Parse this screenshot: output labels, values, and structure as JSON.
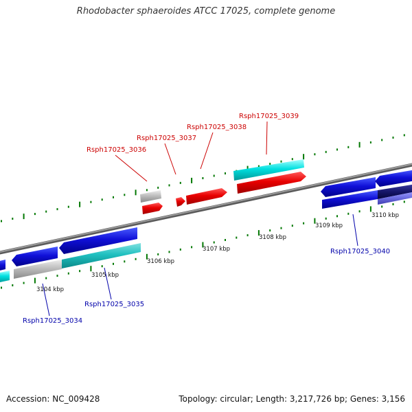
{
  "title": "Rhodobacter sphaeroides ATCC 17025, complete genome",
  "footer": {
    "accession": "Accession: NC_009428",
    "topology": "Topology: circular; Length: 3,217,726 bp; Genes: 3,156"
  },
  "colors": {
    "forward_gene": "#e80000",
    "reverse_gene": "#1010d8",
    "cyan_feature": "#00d8d8",
    "grey_feature": "#b0b0b0",
    "tick": "#007700",
    "forward_label": "#cc0000",
    "reverse_label": "#0000aa",
    "backbone": "#808080"
  },
  "scale_labels": [
    "3104 kbp",
    "3105 kbp",
    "3106 kbp",
    "3107 kbp",
    "3108 kbp",
    "3109 kbp",
    "3110 kbp"
  ],
  "genes": {
    "forward": [
      "Rsph17025_3036",
      "Rsph17025_3037",
      "Rsph17025_3038",
      "Rsph17025_3039"
    ],
    "reverse": [
      "Rsph17025_3034",
      "Rsph17025_3035",
      "Rsph17025_3040"
    ]
  }
}
